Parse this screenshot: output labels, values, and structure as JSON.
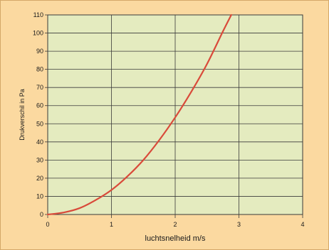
{
  "chart_data": {
    "type": "line",
    "title": "",
    "xlabel": "luchtsnelheid m/s",
    "ylabel": "Drukverschil in Pa",
    "xlim": [
      0,
      4
    ],
    "ylim": [
      0,
      110
    ],
    "x_ticks": [
      "0",
      "1",
      "2",
      "3",
      "4"
    ],
    "y_ticks": [
      "0",
      "10",
      "20",
      "30",
      "40",
      "50",
      "60",
      "70",
      "80",
      "90",
      "100",
      "110"
    ],
    "grid": true,
    "series": [
      {
        "color": "#d94a3a",
        "x": [
          0,
          0.25,
          0.5,
          0.75,
          1.0,
          1.25,
          1.5,
          1.75,
          2.0,
          2.25,
          2.5,
          2.75,
          2.88
        ],
        "y": [
          0,
          1.1,
          3.5,
          7.9,
          13.5,
          21,
          30,
          41,
          53.5,
          67.5,
          83,
          101,
          110
        ]
      }
    ],
    "colors": {
      "plot_background": "#e4ebbf",
      "outer_background": "#fbd9a0",
      "grid": "#3a3a3a"
    }
  }
}
